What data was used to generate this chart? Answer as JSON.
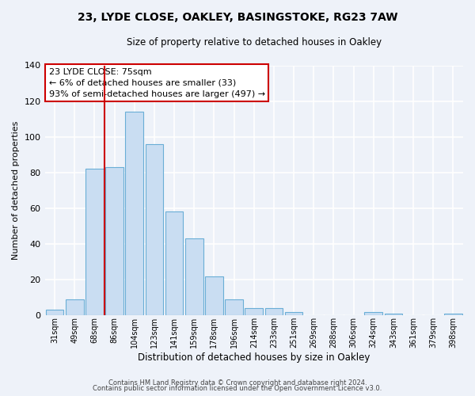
{
  "title1": "23, LYDE CLOSE, OAKLEY, BASINGSTOKE, RG23 7AW",
  "title2": "Size of property relative to detached houses in Oakley",
  "xlabel": "Distribution of detached houses by size in Oakley",
  "ylabel": "Number of detached properties",
  "bar_labels": [
    "31sqm",
    "49sqm",
    "68sqm",
    "86sqm",
    "104sqm",
    "123sqm",
    "141sqm",
    "159sqm",
    "178sqm",
    "196sqm",
    "214sqm",
    "233sqm",
    "251sqm",
    "269sqm",
    "288sqm",
    "306sqm",
    "324sqm",
    "343sqm",
    "361sqm",
    "379sqm",
    "398sqm"
  ],
  "bar_values": [
    3,
    9,
    82,
    83,
    114,
    96,
    58,
    43,
    22,
    9,
    4,
    4,
    2,
    0,
    0,
    0,
    2,
    1,
    0,
    0,
    1
  ],
  "bar_color": "#c9ddf2",
  "bar_edgecolor": "#6aaed6",
  "ylim": [
    0,
    140
  ],
  "yticks": [
    0,
    20,
    40,
    60,
    80,
    100,
    120,
    140
  ],
  "vline_color": "#cc0000",
  "annotation_text": "23 LYDE CLOSE: 75sqm\n← 6% of detached houses are smaller (33)\n93% of semi-detached houses are larger (497) →",
  "annotation_box_color": "#ffffff",
  "annotation_box_edgecolor": "#cc0000",
  "footer1": "Contains HM Land Registry data © Crown copyright and database right 2024.",
  "footer2": "Contains public sector information licensed under the Open Government Licence v3.0.",
  "background_color": "#eef2f9",
  "grid_color": "#ffffff"
}
